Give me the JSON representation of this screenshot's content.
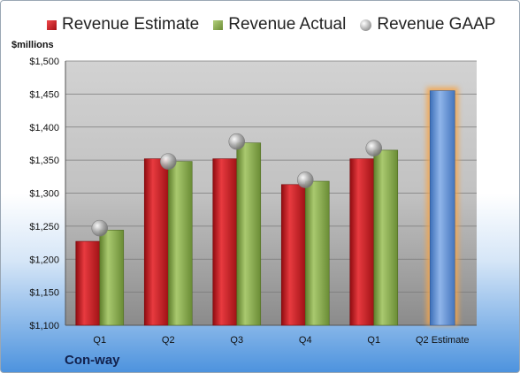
{
  "chart_data": {
    "type": "bar",
    "categories": [
      "Q1",
      "Q2",
      "Q3",
      "Q4",
      "Q1",
      "Q2 Estimate"
    ],
    "series": [
      {
        "name": "Revenue Estimate",
        "values": [
          1227,
          1352,
          1352,
          1313,
          1352,
          null
        ],
        "color": "#c8161c"
      },
      {
        "name": "Revenue Actual",
        "values": [
          1244,
          1348,
          1376,
          1318,
          1365,
          null
        ],
        "color": "#8db34f"
      },
      {
        "name": "Revenue GAAP",
        "type": "scatter",
        "values": [
          1247,
          1348,
          1378,
          1320,
          1368,
          null
        ],
        "color": "#a8a8a8"
      },
      {
        "name": "",
        "values": [
          null,
          null,
          null,
          null,
          null,
          1455
        ],
        "color": "#5b8fd6",
        "highlight": "#f5a54a"
      }
    ],
    "ylabel": "$millions",
    "ylim": [
      1100,
      1500
    ],
    "yticks": [
      1100,
      1150,
      1200,
      1250,
      1300,
      1350,
      1400,
      1450,
      1500
    ],
    "ytick_labels": [
      "$1,100",
      "$1,150",
      "$1,200",
      "$1,250",
      "$1,300",
      "$1,350",
      "$1,400",
      "$1,450",
      "$1,500"
    ],
    "grid": true,
    "legend": "top",
    "company": "Con-way"
  }
}
